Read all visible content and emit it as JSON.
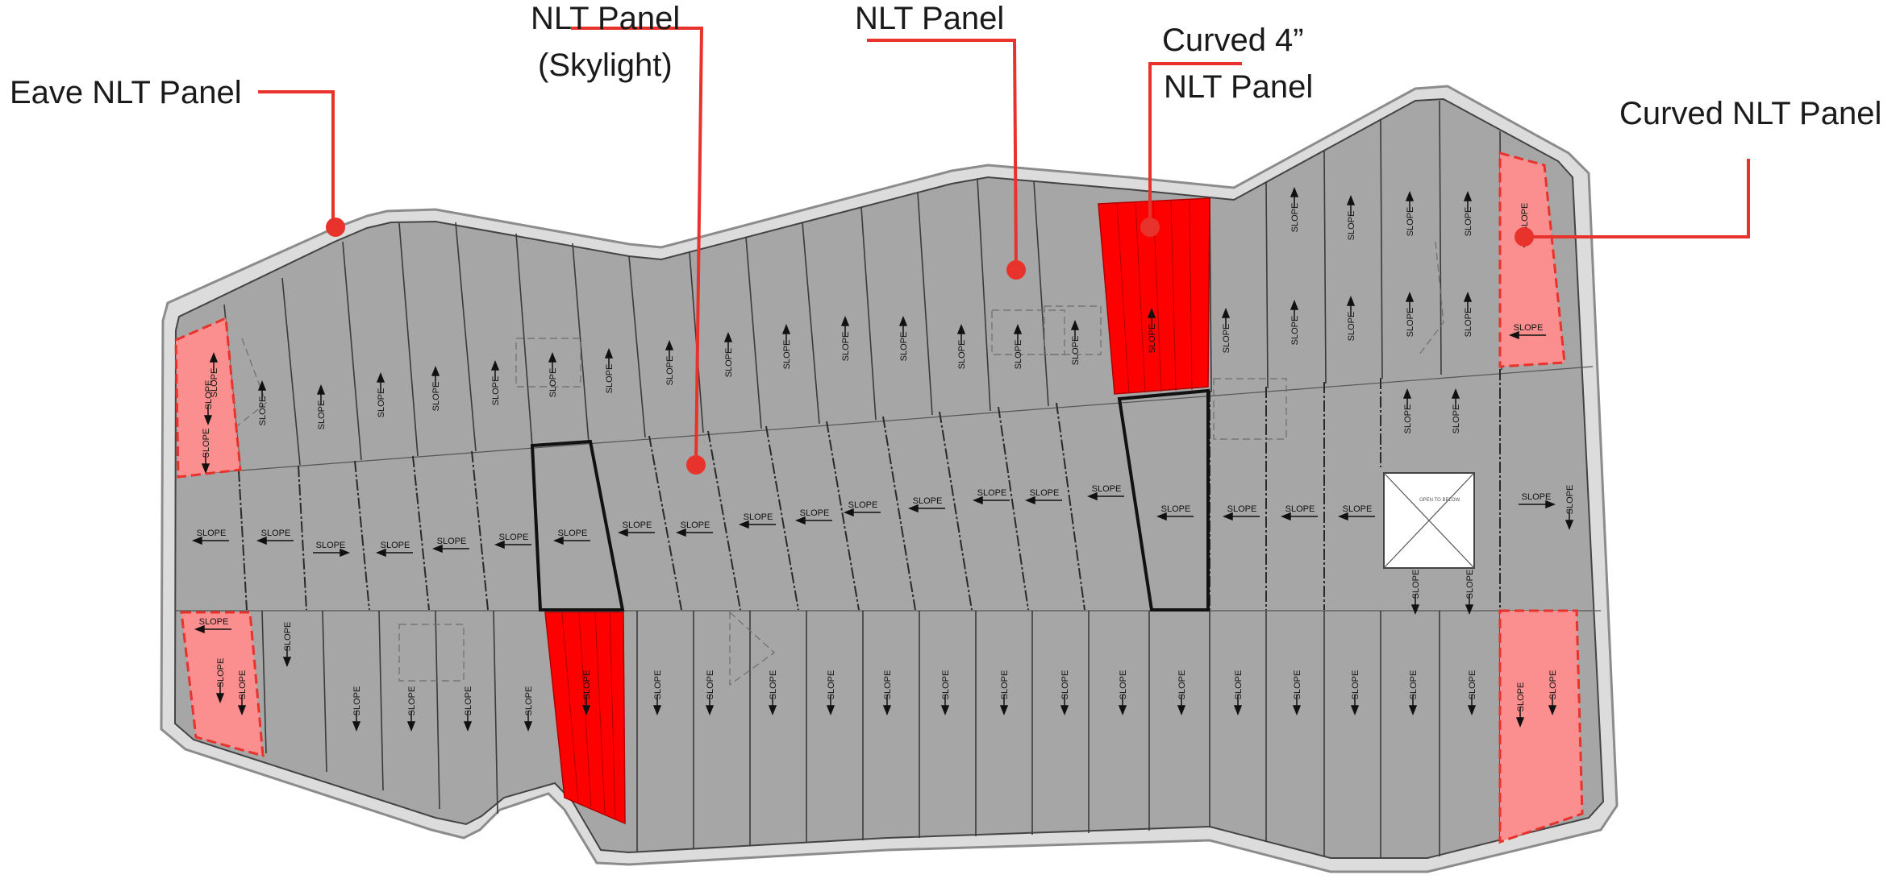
{
  "callouts": {
    "eave": "Eave NLT Panel",
    "skylight_line1": "NLT Panel",
    "skylight_line2": "(Skylight)",
    "nlt": "NLT Panel",
    "curved4_line1": "Curved 4”",
    "curved4_line2": "NLT Panel",
    "curved": "Curved NLT Panel"
  },
  "plan": {
    "slope_label": "SLOPE",
    "skylight_opening_note": "OPEN TO BELOW"
  },
  "colors": {
    "panel": "#a6a6a6",
    "eave_band": "#dcdcdc",
    "callout_red": "#e8322c",
    "curved_panel_fill": "#fb8f8f",
    "curved4_fill": "#ff0000",
    "opening": "#ffffff"
  }
}
